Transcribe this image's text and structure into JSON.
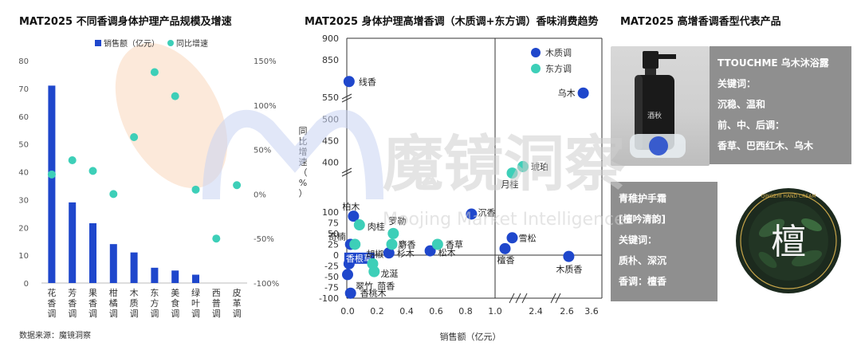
{
  "left_chart": {
    "title": "MAT2025 不同香调身体护理产品规模及增速",
    "legend": [
      "销售额（亿元）",
      "同比增速"
    ],
    "y_left_ticks": [
      "0",
      "10",
      "20",
      "30",
      "40",
      "50",
      "60",
      "70",
      "80"
    ],
    "y_right_ticks": [
      "-100%",
      "-50%",
      "0%",
      "50%",
      "100%",
      "150%"
    ]
  },
  "mid_chart": {
    "title": "MAT2025 身体护理高增香调（木质调+东方调）香味消费趋势",
    "legend": [
      "木质调",
      "东方调"
    ],
    "ylabel": "同比增速（%）",
    "xlabel": "销售额（亿元）",
    "y_ticks_low": [
      "-100",
      "-75",
      "-50",
      "-25",
      "0",
      "25",
      "50",
      "75",
      "100"
    ],
    "y_ticks_high": [
      "400",
      "450",
      "500",
      "550"
    ],
    "y_ticks_top": [
      "850",
      "900"
    ],
    "x_ticks_left": [
      "0.0",
      "0.2",
      "0.4",
      "0.6",
      "0.8",
      "1.0"
    ],
    "x_ticks_right": [
      "2.4",
      "2.6",
      "3.6"
    ]
  },
  "right_panel": {
    "title": "MAT2025 高增香调香型代表产品",
    "product1": {
      "name": "TTOUCHME 乌木沐浴露",
      "kw_label": "关键词：",
      "kw_value": "沉稳、温和",
      "notes_label": "前、中、后调：",
      "notes_value": "香草、巴西红木、乌木",
      "bottle_text": "酒秋"
    },
    "product2": {
      "name": "青稚护手霜",
      "sub": "[檀吟清韵]",
      "kw_label": "关键词：",
      "kw_value": "质朴、深沉",
      "scent_label": "香调：檀香",
      "tin_char": "檀",
      "tin_ring": "QINGZHI HAND CREAM"
    }
  },
  "watermark": {
    "text": "魔镜洞察",
    "sub": "Moojing Market Intelligence"
  },
  "source": "数据来源：魔镜洞察",
  "colors": {
    "bar": "#1f47cc",
    "teal": "#3dcfb8",
    "wood": "#1f47cc",
    "oriental": "#3dcfb8",
    "highlight_ellipse": "#fbe3d1"
  },
  "chart_data": [
    {
      "type": "bar",
      "title": "MAT2025 不同香调身体护理产品规模及增速",
      "categories": [
        "花香调",
        "芳香调",
        "果香调",
        "柑橘调",
        "木质调",
        "东方调",
        "美食调",
        "绿叶调",
        "西普调",
        "皮革调"
      ],
      "series": [
        {
          "name": "销售额（亿元）",
          "axis": "left",
          "values": [
            71,
            29,
            21.5,
            14,
            11,
            5.5,
            4.5,
            3,
            0,
            0
          ]
        },
        {
          "name": "同比增速",
          "axis": "right",
          "type": "scatter",
          "values": [
            22,
            38,
            26,
            0,
            64,
            137,
            110,
            5,
            -50,
            10
          ]
        }
      ],
      "ylim_left": [
        0,
        80
      ],
      "ylim_right": [
        -100,
        150
      ],
      "highlight": [
        "木质调",
        "东方调",
        "美食调"
      ]
    },
    {
      "type": "scatter",
      "title": "MAT2025 身体护理高增香调（木质调+东方调）香味消费趋势",
      "xlabel": "销售额（亿元）",
      "ylabel": "同比增速（%）",
      "series": [
        {
          "name": "木质调",
          "points": [
            {
              "label": "线香",
              "x": 0.01,
              "y": 865
            },
            {
              "label": "乌木",
              "x": 3.3,
              "y": 560
            },
            {
              "label": "柏木",
              "x": 0.04,
              "y": 90
            },
            {
              "label": "沉香",
              "x": 0.84,
              "y": 95
            },
            {
              "label": "奇楠",
              "x": 0.02,
              "y": 25
            },
            {
              "label": "杉木",
              "x": 0.28,
              "y": 5
            },
            {
              "label": "松木",
              "x": 0.56,
              "y": 10
            },
            {
              "label": "雪松",
              "x": 2.05,
              "y": 40
            },
            {
              "label": "檀香",
              "x": 1.95,
              "y": 15
            },
            {
              "label": "木质香",
              "x": 2.65,
              "y": -3
            },
            {
              "label": "香根草",
              "x": 0.01,
              "y": -20
            },
            {
              "label": "翠竹",
              "x": 0.0,
              "y": -45
            },
            {
              "label": "香桃木",
              "x": 0.02,
              "y": -88
            }
          ]
        },
        {
          "name": "东方调",
          "points": [
            {
              "label": "琥珀",
              "x": 2.2,
              "y": 390
            },
            {
              "label": "月桂",
              "x": 2.05,
              "y": 375
            },
            {
              "label": "肉桂",
              "x": 0.08,
              "y": 70
            },
            {
              "label": "罗勒",
              "x": 0.31,
              "y": 50
            },
            {
              "label": "胡椒",
              "x": 0.05,
              "y": 25
            },
            {
              "label": "麝香",
              "x": 0.3,
              "y": 25
            },
            {
              "label": "香草",
              "x": 0.61,
              "y": 25
            },
            {
              "label": "龙涎",
              "x": 0.17,
              "y": -20
            },
            {
              "label": "茴香",
              "x": 0.18,
              "y": -38
            }
          ]
        }
      ]
    }
  ]
}
